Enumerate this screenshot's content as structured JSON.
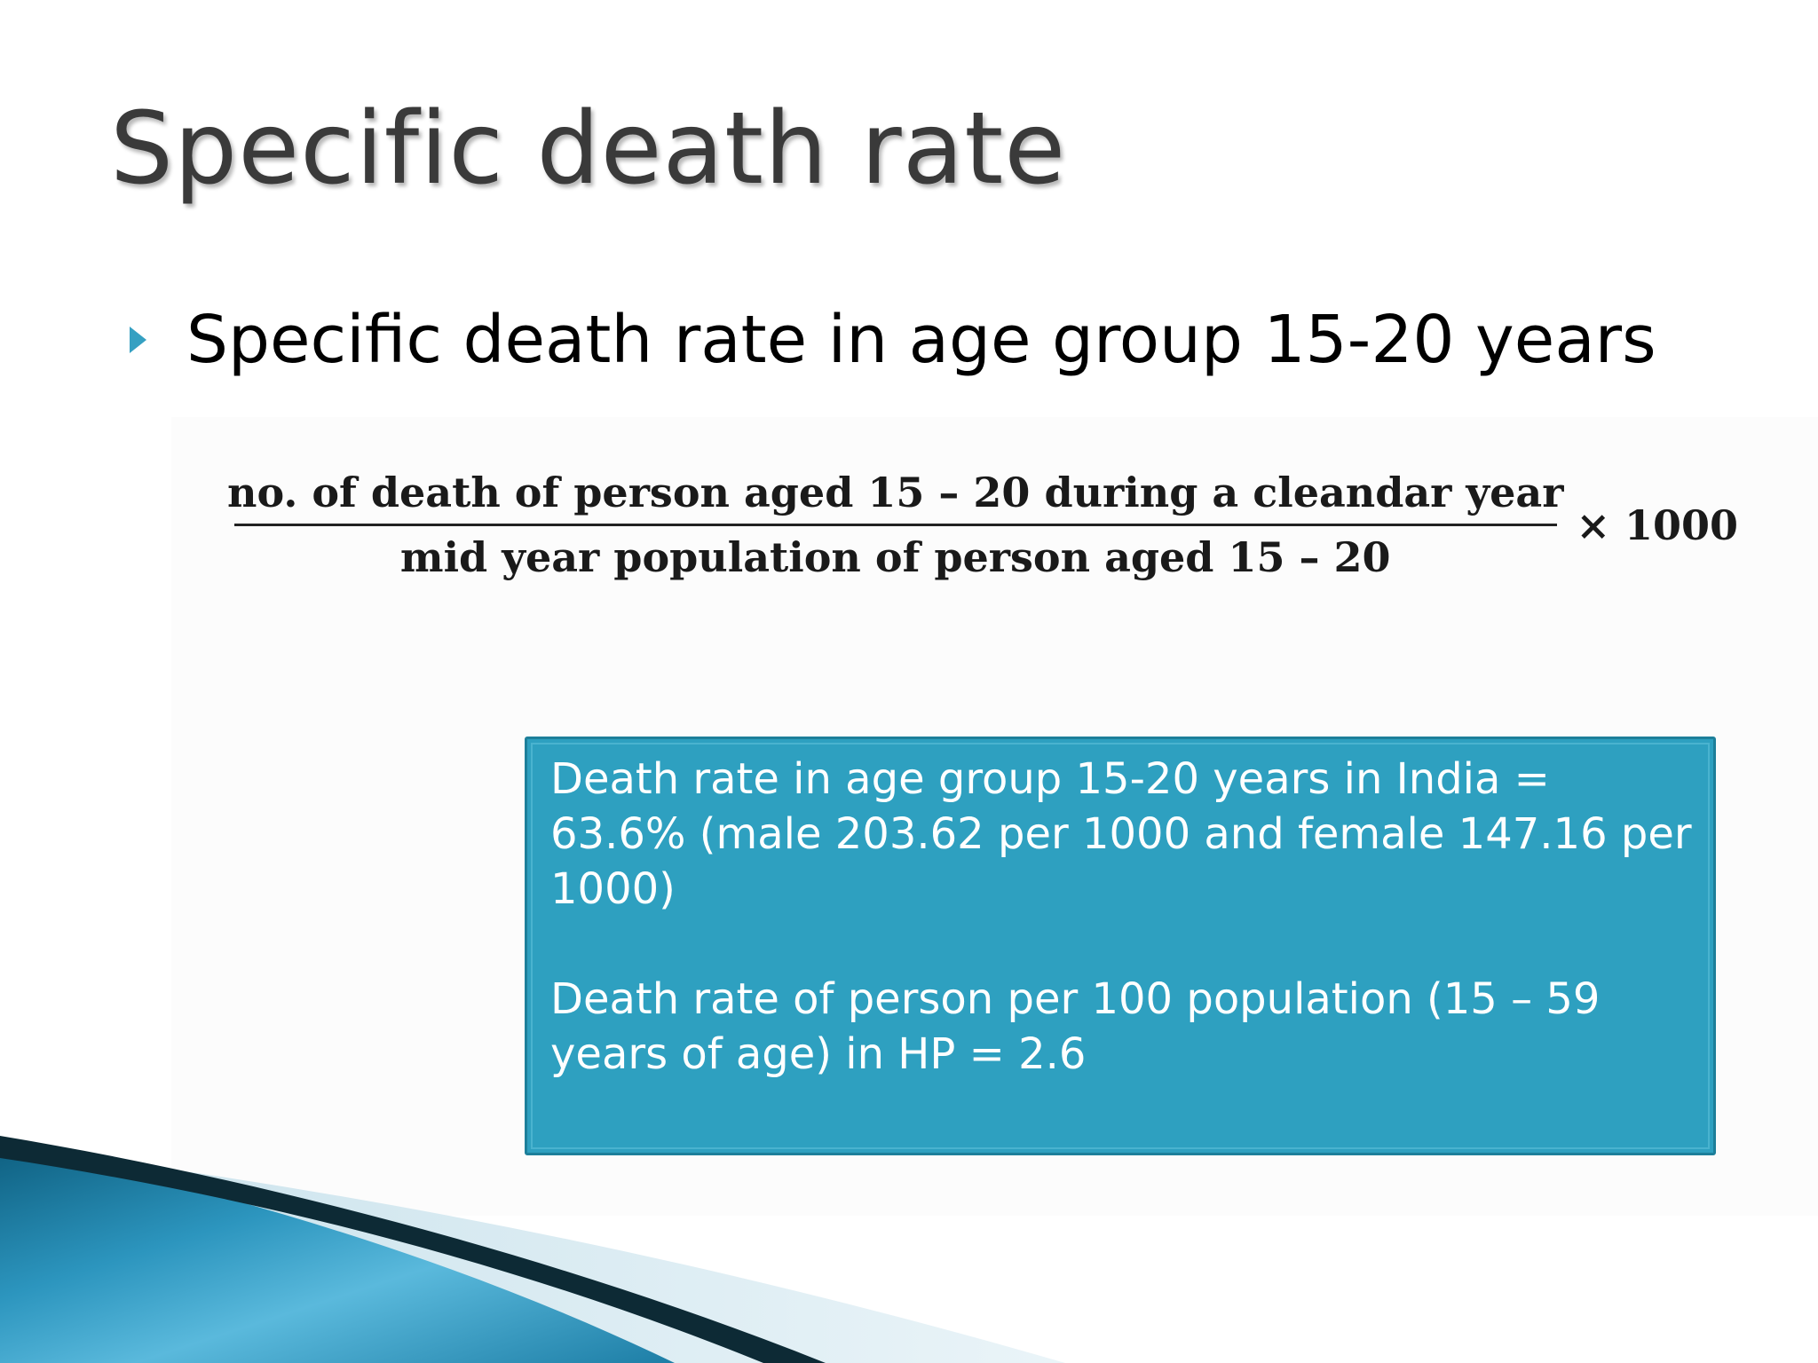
{
  "slide": {
    "title": "Specific death rate",
    "bullet": {
      "icon": "triangle-bullet-icon",
      "text": "Specific death rate in age group 15-20 years"
    },
    "formula": {
      "numerator": "no. of death of person aged 15 – 20 during a cleandar year",
      "denominator": "mid year population of person aged 15 – 20",
      "multiplier": "× 1000"
    },
    "info_box": {
      "paragraph_1": "Death rate in age group 15-20 years in India = 63.6% (male 203.62 per 1000 and female 147.16 per 1000)",
      "paragraph_2": "Death rate of person per 100 population (15 – 59 years of age) in HP = 2.6"
    }
  },
  "colors": {
    "accent": "#35a0c2",
    "info_box_fill": "#2ea0c0",
    "info_box_border": "#1d7f9a",
    "title_text": "#3a3a3a",
    "swoosh_dark": "#0d2a35",
    "swoosh_blue": "#1f86ad"
  }
}
